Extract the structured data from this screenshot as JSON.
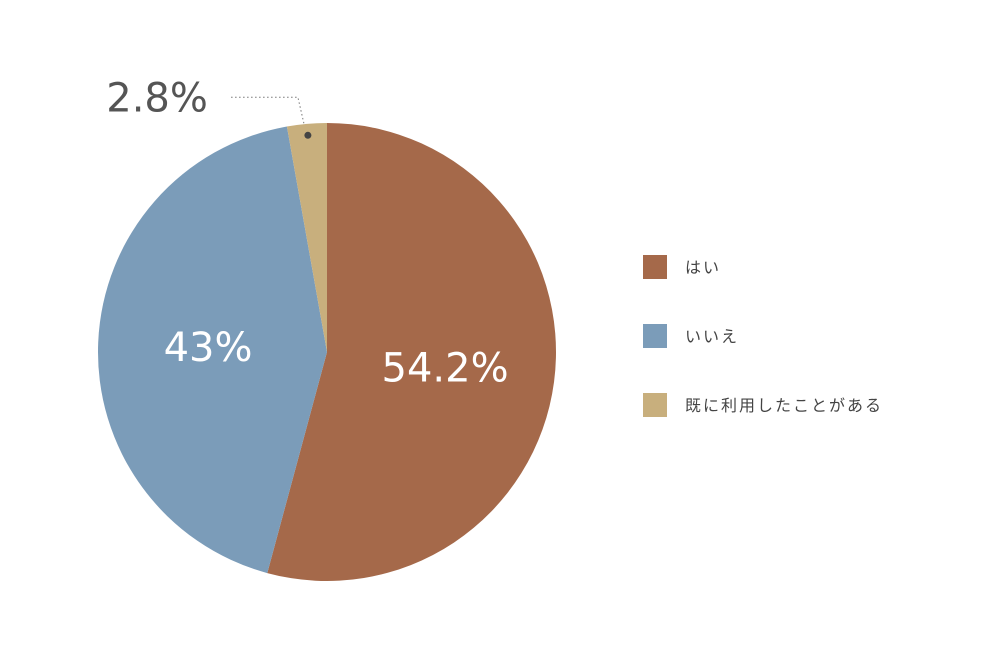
{
  "chart_data": {
    "type": "pie",
    "categories": [
      "はい",
      "いいえ",
      "既に利用したことがある"
    ],
    "values": [
      54.2,
      43,
      2.8
    ],
    "value_labels": [
      "54.2%",
      "43%",
      "2.8%"
    ],
    "colors": [
      "#a5694a",
      "#7b9cb9",
      "#c8af7d"
    ]
  }
}
